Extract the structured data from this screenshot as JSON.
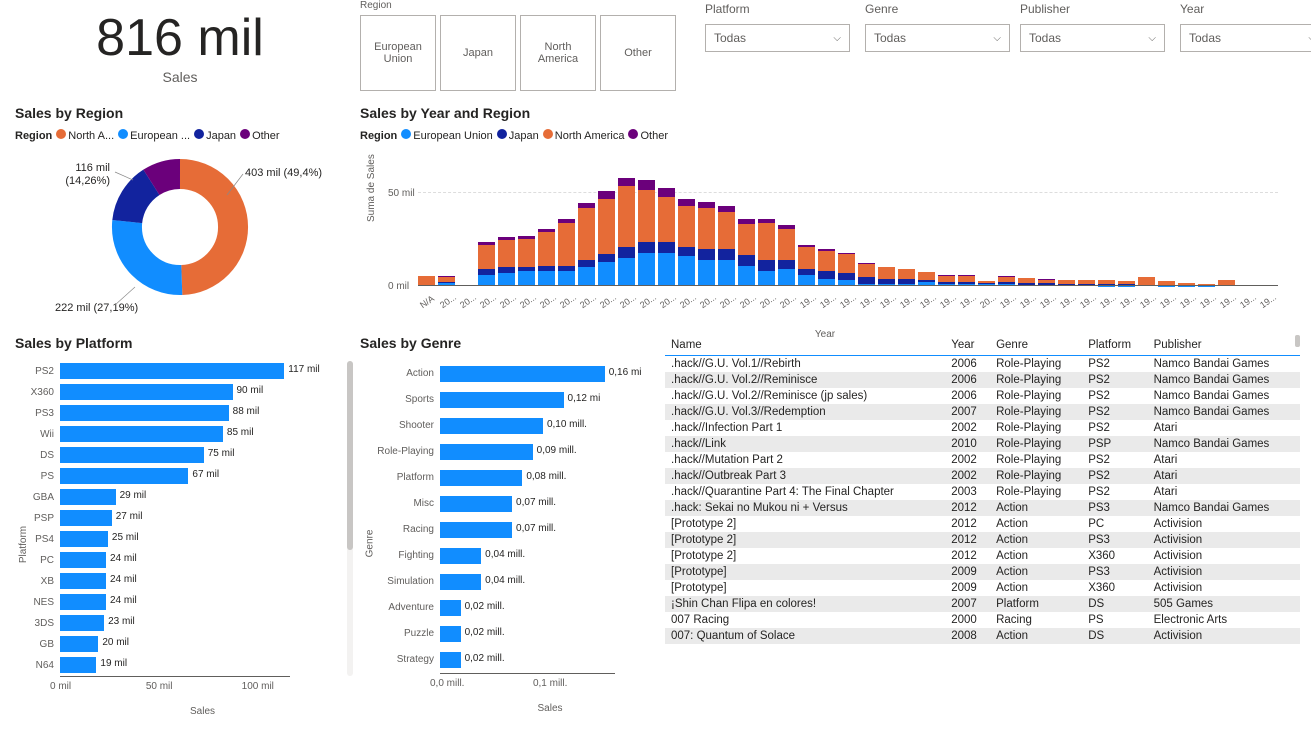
{
  "colors": {
    "blue": "#118dff",
    "orange": "#e66c37",
    "navy": "#12239e",
    "purple": "#6b007b",
    "axis": "#605e5c",
    "grid": "#dddddd"
  },
  "kpi": {
    "value": "816 mil",
    "label": "Sales"
  },
  "region_slicer": {
    "label": "Region",
    "options": [
      "European\nUnion",
      "Japan",
      "North\nAmerica",
      "Other"
    ]
  },
  "slicers": [
    {
      "label": "Platform",
      "value": "Todas"
    },
    {
      "label": "Genre",
      "value": "Todas"
    },
    {
      "label": "Publisher",
      "value": "Todas"
    },
    {
      "label": "Year",
      "value": "Todas"
    }
  ],
  "donut": {
    "title": "Sales by Region",
    "legend_prefix": "Region",
    "legend": [
      {
        "label": "North A...",
        "color": "#e66c37"
      },
      {
        "label": "European ...",
        "color": "#118dff"
      },
      {
        "label": "Japan",
        "color": "#12239e"
      },
      {
        "label": "Other",
        "color": "#6b007b"
      }
    ],
    "slices": [
      {
        "name": "North America",
        "pct": 49.4,
        "color": "#e66c37",
        "label": "403 mil (49,4%)"
      },
      {
        "name": "European Union",
        "pct": 27.19,
        "color": "#118dff",
        "label": "222 mil (27,19%)"
      },
      {
        "name": "Japan",
        "pct": 14.26,
        "color": "#12239e",
        "label": "116 mil\n(14,26%)"
      },
      {
        "name": "Other",
        "pct": 9.15,
        "color": "#6b007b",
        "label": ""
      }
    ]
  },
  "year_chart": {
    "title": "Sales by Year and Region",
    "legend_prefix": "Region",
    "legend": [
      {
        "label": "European Union",
        "color": "#118dff"
      },
      {
        "label": "Japan",
        "color": "#12239e"
      },
      {
        "label": "North America",
        "color": "#e66c37"
      },
      {
        "label": "Other",
        "color": "#6b007b"
      }
    ],
    "y_axis_label": "Suma de Sales",
    "x_axis_label": "Year",
    "y_ticks": [
      {
        "v": 0,
        "label": "0 mil"
      },
      {
        "v": 50,
        "label": "50 mil"
      }
    ],
    "ylim_max": 62,
    "bars": [
      {
        "x": "N/A",
        "eu": 0,
        "jp": 0.3,
        "na": 5,
        "ot": 0
      },
      {
        "x": "20...",
        "eu": 1.5,
        "jp": 0.5,
        "na": 3,
        "ot": 0.5
      },
      {
        "x": "20...",
        "eu": 0,
        "jp": 0,
        "na": 0,
        "ot": 0
      },
      {
        "x": "20...",
        "eu": 6,
        "jp": 3,
        "na": 13,
        "ot": 1.5
      },
      {
        "x": "20...",
        "eu": 7,
        "jp": 3,
        "na": 15,
        "ot": 1.5
      },
      {
        "x": "20...",
        "eu": 8,
        "jp": 2.5,
        "na": 15,
        "ot": 1.5
      },
      {
        "x": "20...",
        "eu": 8,
        "jp": 3,
        "na": 18,
        "ot": 2
      },
      {
        "x": "20...",
        "eu": 8,
        "jp": 3,
        "na": 23,
        "ot": 2
      },
      {
        "x": "20...",
        "eu": 10,
        "jp": 4,
        "na": 28,
        "ot": 3
      },
      {
        "x": "20...",
        "eu": 13,
        "jp": 4,
        "na": 30,
        "ot": 4
      },
      {
        "x": "20...",
        "eu": 15,
        "jp": 6,
        "na": 33,
        "ot": 4
      },
      {
        "x": "20...",
        "eu": 18,
        "jp": 6,
        "na": 28,
        "ot": 5
      },
      {
        "x": "20...",
        "eu": 18,
        "jp": 6,
        "na": 24,
        "ot": 5
      },
      {
        "x": "20...",
        "eu": 16,
        "jp": 5,
        "na": 22,
        "ot": 4
      },
      {
        "x": "20...",
        "eu": 14,
        "jp": 6,
        "na": 22,
        "ot": 3.5
      },
      {
        "x": "20...",
        "eu": 14,
        "jp": 6,
        "na": 20,
        "ot": 3
      },
      {
        "x": "20...",
        "eu": 11,
        "jp": 5.5,
        "na": 17,
        "ot": 2.5
      },
      {
        "x": "20...",
        "eu": 8,
        "jp": 6,
        "na": 20,
        "ot": 2
      },
      {
        "x": "20...",
        "eu": 9,
        "jp": 5,
        "na": 17,
        "ot": 2
      },
      {
        "x": "19...",
        "eu": 6,
        "jp": 3,
        "na": 12,
        "ot": 1
      },
      {
        "x": "19...",
        "eu": 4,
        "jp": 4,
        "na": 11,
        "ot": 1
      },
      {
        "x": "19...",
        "eu": 3,
        "jp": 4,
        "na": 10,
        "ot": 1
      },
      {
        "x": "19...",
        "eu": 1,
        "jp": 4,
        "na": 7,
        "ot": 0.5
      },
      {
        "x": "19...",
        "eu": 1,
        "jp": 3,
        "na": 6,
        "ot": 0.5
      },
      {
        "x": "19...",
        "eu": 1,
        "jp": 3,
        "na": 5,
        "ot": 0.3
      },
      {
        "x": "19...",
        "eu": 2,
        "jp": 1.5,
        "na": 4,
        "ot": 0.3
      },
      {
        "x": "19...",
        "eu": 1,
        "jp": 1,
        "na": 3.5,
        "ot": 0.2
      },
      {
        "x": "19...",
        "eu": 1,
        "jp": 1,
        "na": 3.5,
        "ot": 0.2
      },
      {
        "x": "20...",
        "eu": 1,
        "jp": 0.5,
        "na": 1,
        "ot": 0.2
      },
      {
        "x": "19...",
        "eu": 1,
        "jp": 1,
        "na": 3,
        "ot": 0.2
      },
      {
        "x": "19...",
        "eu": 0.5,
        "jp": 1,
        "na": 3,
        "ot": 0.1
      },
      {
        "x": "19...",
        "eu": 0.5,
        "jp": 1,
        "na": 2,
        "ot": 0.1
      },
      {
        "x": "19...",
        "eu": 0.3,
        "jp": 1,
        "na": 2,
        "ot": 0
      },
      {
        "x": "19...",
        "eu": 0.3,
        "jp": 1,
        "na": 2,
        "ot": 0
      },
      {
        "x": "19...",
        "eu": 0.2,
        "jp": 1,
        "na": 1.8,
        "ot": 0
      },
      {
        "x": "19...",
        "eu": 0.2,
        "jp": 0.8,
        "na": 1.5,
        "ot": 0
      },
      {
        "x": "19...",
        "eu": 0.5,
        "jp": 0.2,
        "na": 4,
        "ot": 0
      },
      {
        "x": "19...",
        "eu": 0.2,
        "jp": 0.3,
        "na": 2,
        "ot": 0
      },
      {
        "x": "19...",
        "eu": 0.1,
        "jp": 0.3,
        "na": 1.5,
        "ot": 0
      },
      {
        "x": "19...",
        "eu": 0.1,
        "jp": 0.2,
        "na": 1,
        "ot": 0
      },
      {
        "x": "19...",
        "eu": 0,
        "jp": 0,
        "na": 3,
        "ot": 0
      },
      {
        "x": "19...",
        "eu": 0,
        "jp": 0,
        "na": 0.5,
        "ot": 0
      },
      {
        "x": "19...",
        "eu": 0,
        "jp": 0,
        "na": 0.3,
        "ot": 0
      }
    ]
  },
  "platform_chart": {
    "title": "Sales by Platform",
    "x_axis_label": "Sales",
    "y_axis_label": "Platform",
    "xmax": 120,
    "x_ticks": [
      {
        "v": 0,
        "label": "0 mil"
      },
      {
        "v": 50,
        "label": "50 mil"
      },
      {
        "v": 100,
        "label": "100 mil"
      }
    ],
    "bars": [
      {
        "cat": "PS2",
        "val": 117,
        "label": "117 mil"
      },
      {
        "cat": "X360",
        "val": 90,
        "label": "90 mil"
      },
      {
        "cat": "PS3",
        "val": 88,
        "label": "88 mil"
      },
      {
        "cat": "Wii",
        "val": 85,
        "label": "85 mil"
      },
      {
        "cat": "DS",
        "val": 75,
        "label": "75 mil"
      },
      {
        "cat": "PS",
        "val": 67,
        "label": "67 mil"
      },
      {
        "cat": "GBA",
        "val": 29,
        "label": "29 mil"
      },
      {
        "cat": "PSP",
        "val": 27,
        "label": "27 mil"
      },
      {
        "cat": "PS4",
        "val": 25,
        "label": "25 mil"
      },
      {
        "cat": "PC",
        "val": 24,
        "label": "24 mil"
      },
      {
        "cat": "XB",
        "val": 24,
        "label": "24 mil"
      },
      {
        "cat": "NES",
        "val": 24,
        "label": "24 mil"
      },
      {
        "cat": "3DS",
        "val": 23,
        "label": "23 mil"
      },
      {
        "cat": "GB",
        "val": 20,
        "label": "20 mil"
      },
      {
        "cat": "N64",
        "val": 19,
        "label": "19 mil"
      }
    ]
  },
  "genre_chart": {
    "title": "Sales by Genre",
    "x_axis_label": "Sales",
    "y_axis_label": "Genre",
    "xmax": 0.17,
    "x_ticks": [
      {
        "v": 0,
        "label": "0,0 mill."
      },
      {
        "v": 0.1,
        "label": "0,1 mill."
      }
    ],
    "bars": [
      {
        "cat": "Action",
        "val": 0.16,
        "label": "0,16 mi"
      },
      {
        "cat": "Sports",
        "val": 0.12,
        "label": "0,12 mi"
      },
      {
        "cat": "Shooter",
        "val": 0.1,
        "label": "0,10 mill."
      },
      {
        "cat": "Role-Playing",
        "val": 0.09,
        "label": "0,09 mill."
      },
      {
        "cat": "Platform",
        "val": 0.08,
        "label": "0,08 mill."
      },
      {
        "cat": "Misc",
        "val": 0.07,
        "label": "0,07 mill."
      },
      {
        "cat": "Racing",
        "val": 0.07,
        "label": "0,07 mill."
      },
      {
        "cat": "Fighting",
        "val": 0.04,
        "label": "0,04 mill."
      },
      {
        "cat": "Simulation",
        "val": 0.04,
        "label": "0,04 mill."
      },
      {
        "cat": "Adventure",
        "val": 0.02,
        "label": "0,02 mill."
      },
      {
        "cat": "Puzzle",
        "val": 0.02,
        "label": "0,02 mill."
      },
      {
        "cat": "Strategy",
        "val": 0.02,
        "label": "0,02 mill."
      }
    ]
  },
  "table": {
    "columns": [
      "Name",
      "Year",
      "Genre",
      "Platform",
      "Publisher"
    ],
    "rows": [
      [
        ".hack//G.U. Vol.1//Rebirth",
        "2006",
        "Role-Playing",
        "PS2",
        "Namco Bandai Games"
      ],
      [
        ".hack//G.U. Vol.2//Reminisce",
        "2006",
        "Role-Playing",
        "PS2",
        "Namco Bandai Games"
      ],
      [
        ".hack//G.U. Vol.2//Reminisce (jp sales)",
        "2006",
        "Role-Playing",
        "PS2",
        "Namco Bandai Games"
      ],
      [
        ".hack//G.U. Vol.3//Redemption",
        "2007",
        "Role-Playing",
        "PS2",
        "Namco Bandai Games"
      ],
      [
        ".hack//Infection Part 1",
        "2002",
        "Role-Playing",
        "PS2",
        "Atari"
      ],
      [
        ".hack//Link",
        "2010",
        "Role-Playing",
        "PSP",
        "Namco Bandai Games"
      ],
      [
        ".hack//Mutation Part 2",
        "2002",
        "Role-Playing",
        "PS2",
        "Atari"
      ],
      [
        ".hack//Outbreak Part 3",
        "2002",
        "Role-Playing",
        "PS2",
        "Atari"
      ],
      [
        ".hack//Quarantine Part 4: The Final Chapter",
        "2003",
        "Role-Playing",
        "PS2",
        "Atari"
      ],
      [
        ".hack: Sekai no Mukou ni + Versus",
        "2012",
        "Action",
        "PS3",
        "Namco Bandai Games"
      ],
      [
        "[Prototype 2]",
        "2012",
        "Action",
        "PC",
        "Activision"
      ],
      [
        "[Prototype 2]",
        "2012",
        "Action",
        "PS3",
        "Activision"
      ],
      [
        "[Prototype 2]",
        "2012",
        "Action",
        "X360",
        "Activision"
      ],
      [
        "[Prototype]",
        "2009",
        "Action",
        "PS3",
        "Activision"
      ],
      [
        "[Prototype]",
        "2009",
        "Action",
        "X360",
        "Activision"
      ],
      [
        "¡Shin Chan Flipa en colores!",
        "2007",
        "Platform",
        "DS",
        "505 Games"
      ],
      [
        "007 Racing",
        "2000",
        "Racing",
        "PS",
        "Electronic Arts"
      ],
      [
        "007: Quantum of Solace",
        "2008",
        "Action",
        "DS",
        "Activision"
      ]
    ]
  }
}
